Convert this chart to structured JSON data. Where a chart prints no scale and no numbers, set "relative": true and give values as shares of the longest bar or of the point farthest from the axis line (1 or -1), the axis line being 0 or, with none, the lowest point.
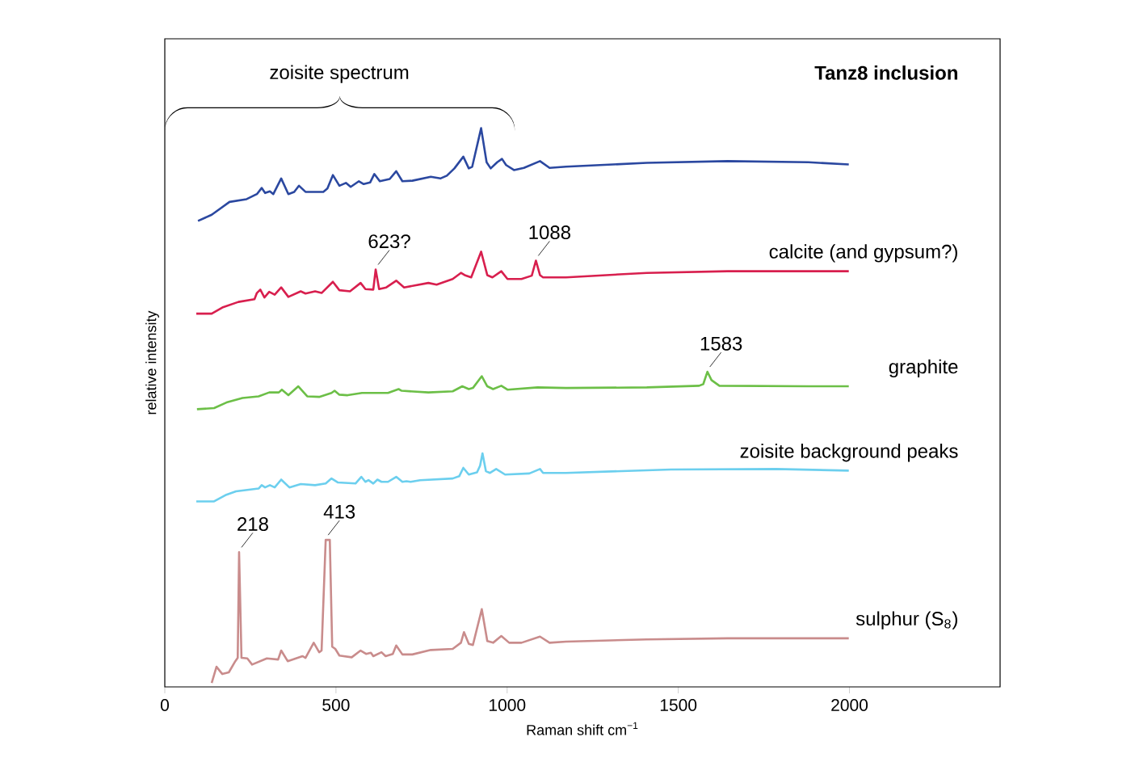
{
  "chart_data": {
    "type": "line",
    "relative": true,
    "title": "Tanz8 inclusion",
    "xlabel": "Raman shift cm$^{−1}$",
    "ylabel": "relative intensity",
    "xlim": [
      0,
      2440
    ],
    "xticks": [
      0,
      500,
      1000,
      1500,
      2000
    ],
    "annotations": [
      "zoisite spectrum",
      {
        "text": "623?",
        "x": 616,
        "y": 0.747
      },
      {
        "text": "1088",
        "x": 1084,
        "y": 0.763
      },
      {
        "text": "1583",
        "x": 1585,
        "y": 0.564
      },
      {
        "text": "218",
        "x": 217,
        "y": 0.241
      },
      {
        "text": "413",
        "x": 470,
        "y": 0.263
      }
    ],
    "series": [
      {
        "color": "#2b48a0",
        "x": [
          97,
          137,
          189,
          239,
          269,
          283,
          293,
          307,
          317,
          340,
          361,
          378,
          392,
          411,
          463,
          475,
          491,
          510,
          529,
          543,
          567,
          581,
          600,
          612,
          628,
          657,
          676,
          694,
          723,
          777,
          805,
          824,
          846,
          872,
          888,
          898,
          924,
          940,
          952,
          971,
          985,
          997,
          1020,
          1049,
          1096,
          1124,
          1172,
          1408,
          1644,
          1880,
          1998
        ],
        "values": [
          0.834,
          0.845,
          0.868,
          0.873,
          0.882,
          0.893,
          0.884,
          0.887,
          0.882,
          0.91,
          0.882,
          0.886,
          0.897,
          0.886,
          0.886,
          0.892,
          0.916,
          0.897,
          0.902,
          0.895,
          0.905,
          0.9,
          0.903,
          0.918,
          0.905,
          0.909,
          0.923,
          0.905,
          0.906,
          0.913,
          0.91,
          0.915,
          0.928,
          0.949,
          0.928,
          0.931,
          1.0,
          0.939,
          0.928,
          0.939,
          0.945,
          0.934,
          0.925,
          0.929,
          0.941,
          0.929,
          0.931,
          0.938,
          0.941,
          0.939,
          0.935
        ]
      },
      {
        "name": "calcite (and gypsum?)",
        "color": "#d81f4e",
        "x": [
          92,
          137,
          168,
          215,
          262,
          269,
          279,
          291,
          305,
          321,
          340,
          361,
          397,
          411,
          439,
          458,
          491,
          510,
          541,
          572,
          586,
          609,
          616,
          626,
          647,
          676,
          699,
          770,
          794,
          841,
          865,
          876,
          895,
          924,
          942,
          957,
          983,
          1001,
          1042,
          1072,
          1084,
          1096,
          1105,
          1172,
          1408,
          1644,
          1998
        ],
        "values": [
          0.668,
          0.668,
          0.679,
          0.689,
          0.694,
          0.705,
          0.711,
          0.697,
          0.707,
          0.702,
          0.715,
          0.698,
          0.708,
          0.704,
          0.708,
          0.705,
          0.725,
          0.71,
          0.708,
          0.723,
          0.712,
          0.711,
          0.747,
          0.712,
          0.715,
          0.727,
          0.715,
          0.723,
          0.72,
          0.73,
          0.741,
          0.737,
          0.733,
          0.779,
          0.737,
          0.733,
          0.744,
          0.73,
          0.73,
          0.736,
          0.763,
          0.737,
          0.733,
          0.733,
          0.741,
          0.744,
          0.744
        ]
      },
      {
        "name": "graphite",
        "color": "#6cbf47",
        "x": [
          94,
          144,
          180,
          227,
          274,
          305,
          333,
          342,
          361,
          390,
          416,
          451,
          487,
          496,
          510,
          534,
          576,
          652,
          683,
          692,
          770,
          841,
          869,
          888,
          900,
          926,
          942,
          959,
          983,
          1001,
          1089,
          1172,
          1408,
          1561,
          1573,
          1585,
          1597,
          1620,
          1880,
          1998
        ],
        "values": [
          0.497,
          0.499,
          0.509,
          0.517,
          0.52,
          0.527,
          0.527,
          0.532,
          0.522,
          0.538,
          0.52,
          0.519,
          0.526,
          0.53,
          0.523,
          0.522,
          0.526,
          0.526,
          0.533,
          0.53,
          0.527,
          0.529,
          0.538,
          0.533,
          0.535,
          0.556,
          0.538,
          0.533,
          0.539,
          0.532,
          0.536,
          0.535,
          0.536,
          0.539,
          0.542,
          0.564,
          0.549,
          0.539,
          0.538,
          0.538
        ]
      },
      {
        "name": "zoisite background peaks",
        "color": "#6ccfee",
        "x": [
          92,
          144,
          180,
          208,
          274,
          283,
          293,
          307,
          321,
          340,
          364,
          397,
          439,
          470,
          487,
          505,
          557,
          574,
          586,
          595,
          609,
          621,
          633,
          652,
          676,
          694,
          706,
          718,
          746,
          841,
          860,
          872,
          888,
          912,
          921,
          928,
          938,
          950,
          968,
          994,
          1065,
          1096,
          1105,
          1172,
          1479,
          1786,
          1998
        ],
        "values": [
          0.332,
          0.332,
          0.344,
          0.35,
          0.355,
          0.361,
          0.357,
          0.361,
          0.357,
          0.371,
          0.357,
          0.363,
          0.361,
          0.364,
          0.373,
          0.366,
          0.364,
          0.376,
          0.367,
          0.37,
          0.364,
          0.371,
          0.367,
          0.367,
          0.376,
          0.367,
          0.368,
          0.367,
          0.37,
          0.373,
          0.377,
          0.392,
          0.38,
          0.384,
          0.396,
          0.418,
          0.386,
          0.383,
          0.39,
          0.38,
          0.382,
          0.39,
          0.383,
          0.383,
          0.389,
          0.39,
          0.387
        ]
      },
      {
        "name": "sulphur (S$_{8}$)",
        "color": "#c98c8c",
        "x": [
          137,
          151,
          168,
          187,
          206,
          213,
          217,
          224,
          241,
          255,
          298,
          331,
          340,
          359,
          402,
          411,
          435,
          451,
          458,
          470,
          482,
          489,
          498,
          510,
          546,
          572,
          588,
          602,
          609,
          633,
          645,
          666,
          676,
          694,
          723,
          777,
          841,
          865,
          874,
          888,
          900,
          926,
          942,
          959,
          983,
          1006,
          1042,
          1096,
          1124,
          1172,
          1408,
          1644,
          1998
        ],
        "values": [
          0.007,
          0.036,
          0.023,
          0.026,
          0.046,
          0.052,
          0.241,
          0.052,
          0.051,
          0.04,
          0.051,
          0.049,
          0.065,
          0.046,
          0.055,
          0.052,
          0.079,
          0.062,
          0.065,
          0.263,
          0.263,
          0.072,
          0.068,
          0.056,
          0.053,
          0.065,
          0.059,
          0.061,
          0.055,
          0.062,
          0.055,
          0.059,
          0.074,
          0.058,
          0.058,
          0.066,
          0.068,
          0.079,
          0.098,
          0.077,
          0.075,
          0.139,
          0.082,
          0.079,
          0.091,
          0.079,
          0.079,
          0.09,
          0.079,
          0.081,
          0.085,
          0.087,
          0.087
        ]
      }
    ]
  }
}
